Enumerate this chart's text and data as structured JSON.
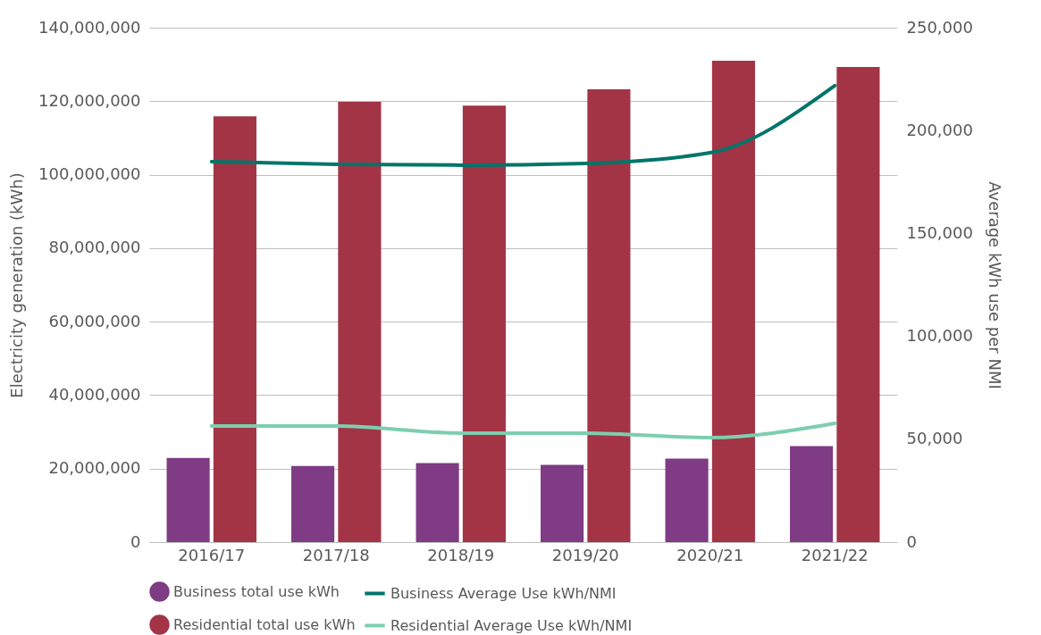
{
  "chart_data": {
    "type": "bar",
    "ylabel": "Electricity generation (kWh)",
    "y2label": "Average kWh use per NMI",
    "categories": [
      "2016/17",
      "2017/18",
      "2018/19",
      "2019/20",
      "2020/21",
      "2021/22"
    ],
    "series": [
      {
        "name": "Business total use kWh",
        "color": "#7f3b84",
        "values": [
          22900000,
          20700000,
          21500000,
          21000000,
          22700000,
          26100000
        ]
      },
      {
        "name": "Residential total use kWh",
        "color": "#a23446",
        "values": [
          115900000,
          119800000,
          118800000,
          123200000,
          131000000,
          129300000
        ]
      },
      {
        "name": "Business Average Use kWh/NMI",
        "type": "line",
        "axis": "y2",
        "color": "#00756a",
        "values": [
          184900,
          183600,
          183200,
          184000,
          189200,
          221800
        ]
      },
      {
        "name": "Residential Average Use kWh/NMI",
        "type": "line",
        "axis": "y2",
        "color": "#7dceae",
        "values": [
          56400,
          56400,
          53000,
          53000,
          50800,
          57700
        ]
      }
    ],
    "ylim": [
      0,
      140000000
    ],
    "yticks": [
      0,
      {
        "value": 20000000,
        "label": "20,000,000"
      },
      {
        "value": 40000000,
        "label": "40,000,000"
      },
      {
        "value": 60000000,
        "label": "60,000,000"
      },
      {
        "value": 80000000,
        "label": "80,000,000"
      },
      {
        "value": 100000000,
        "label": "100,000,000"
      },
      {
        "value": 120000000,
        "label": "120,000,000"
      },
      {
        "value": 140000000,
        "label": "140,000,000"
      }
    ],
    "y2lim": [
      0,
      250000
    ],
    "y2ticks": [
      0,
      {
        "value": 50000,
        "label": "50,000"
      },
      {
        "value": 100000,
        "label": "100,000"
      },
      {
        "value": 150000,
        "label": "150,000"
      },
      {
        "value": 200000,
        "label": "200,000"
      },
      {
        "value": 250000,
        "label": "250,000"
      }
    ],
    "grid": "y",
    "legend": "bottom",
    "marker": "none",
    "line_style": "solid"
  }
}
